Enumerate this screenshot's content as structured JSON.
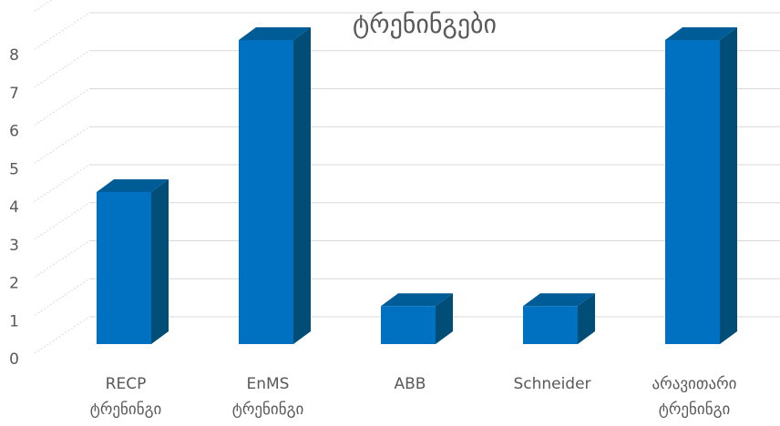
{
  "chart_data": {
    "type": "bar",
    "title": "ტრენინგები",
    "categories": [
      [
        "RECP",
        "ტრენინგი"
      ],
      [
        "EnMS",
        "ტრენინგი"
      ],
      [
        "ABB"
      ],
      [
        "Schneider"
      ],
      [
        "არავითარი",
        "ტრენინგი"
      ]
    ],
    "values": [
      4,
      8,
      1,
      1,
      8
    ],
    "ylim": [
      0,
      8
    ],
    "yticks": [
      0,
      1,
      2,
      3,
      4,
      5,
      6,
      7,
      8
    ],
    "grid": true,
    "style": "3d-column",
    "colors": {
      "front": "#0070C0",
      "side": "#004E78",
      "top": "#005C96",
      "grid": "#D9D9D9",
      "text": "#595959"
    }
  }
}
